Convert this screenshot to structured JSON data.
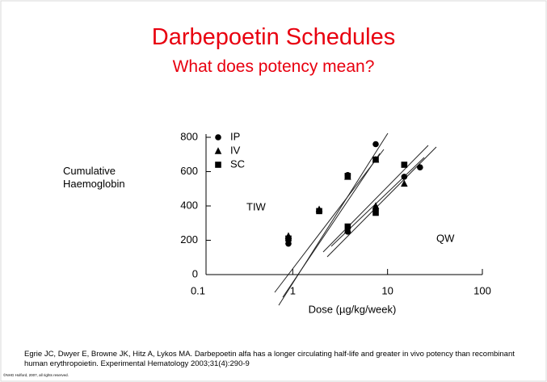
{
  "title": "Darbepoetin Schedules",
  "subtitle": "What does potency mean?",
  "citation": "Egrie JC, Dwyer E, Browne JK, Hitz A, Lykos MA. Darbepoetin alfa has a longer circulating half-life and greater in vivo potency than recombinant human erythropoietin. Experimental Hematology 2003;31(4):290-9",
  "copyright": "©NHG Holford, 2007, all rights reserved.",
  "chart_data": {
    "type": "scatter",
    "ylabel": "Cumulative Haemoglobin",
    "xlabel": "Dose (µg/kg/week)",
    "xscale": "log",
    "xlim": [
      0.1,
      100
    ],
    "xticks": [
      0.1,
      1,
      10,
      100
    ],
    "ylim": [
      0,
      800
    ],
    "yticks": [
      0,
      200,
      400,
      600,
      800
    ],
    "legend": "top-left",
    "annotations": [
      "TIW",
      "QW"
    ],
    "series": [
      {
        "name": "IP",
        "marker": "circle",
        "color": "#000000",
        "x": [
          0.9,
          1.9,
          3.8,
          7.5,
          3.8,
          7.5,
          15,
          22
        ],
        "values": [
          180,
          370,
          580,
          760,
          250,
          380,
          570,
          625
        ]
      },
      {
        "name": "IV",
        "marker": "triangle",
        "color": "#000000",
        "x": [
          0.9,
          1.9,
          3.8,
          7.5,
          3.8,
          7.5,
          15
        ],
        "values": [
          225,
          380,
          570,
          670,
          260,
          400,
          530
        ]
      },
      {
        "name": "SC",
        "marker": "square",
        "color": "#000000",
        "x": [
          0.9,
          1.9,
          3.8,
          7.5,
          3.8,
          7.5,
          15
        ],
        "values": [
          210,
          370,
          575,
          670,
          280,
          360,
          640
        ]
      }
    ]
  }
}
